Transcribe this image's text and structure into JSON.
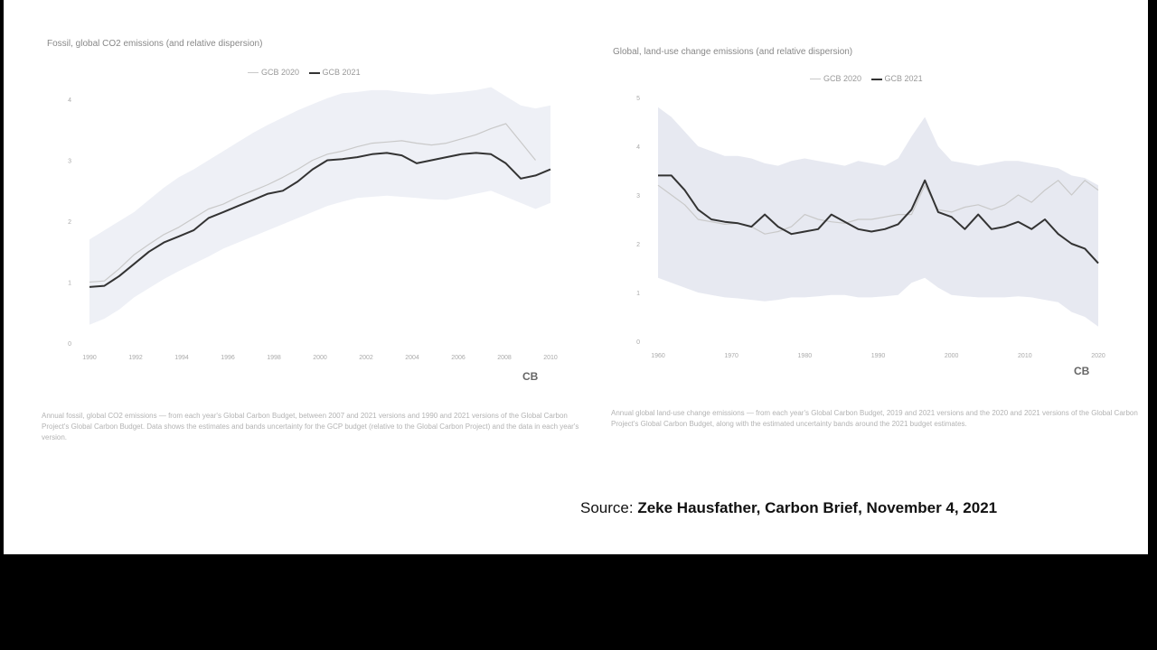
{
  "slide": {
    "source_prefix": "Source:",
    "source_author": "Zeke Hausfather,",
    "source_pub": "Carbon Brief,",
    "source_date": "November 4, 2021"
  },
  "chart_data": [
    {
      "type": "line",
      "title": "Fossil, global CO2 emissions (and relative dispersion)",
      "legend": [
        "GCB 2020",
        "GCB 2021"
      ],
      "legend_position": "top-center",
      "x": [
        1990,
        1991,
        1992,
        1993,
        1994,
        1995,
        1996,
        1997,
        1998,
        1999,
        2000,
        2001,
        2002,
        2003,
        2004,
        2005,
        2006,
        2007,
        2008,
        2009,
        2010,
        2011,
        2012,
        2013,
        2014,
        2015,
        2016,
        2017,
        2018,
        2019,
        2020,
        2021
      ],
      "xticks": [
        "1990",
        "1992",
        "1994",
        "1996",
        "1998",
        "2000",
        "2002",
        "2004",
        "2006",
        "2008",
        "2010"
      ],
      "yticks": [
        "0",
        "1",
        "2",
        "3",
        "4"
      ],
      "ylim": [
        0,
        4
      ],
      "ylabel": "",
      "series": [
        {
          "name": "GCB 2020",
          "color": "#c9c9c9",
          "values": [
            1.0,
            1.02,
            1.22,
            1.45,
            1.62,
            1.78,
            1.9,
            2.05,
            2.2,
            2.28,
            2.4,
            2.5,
            2.6,
            2.72,
            2.85,
            3.0,
            3.1,
            3.15,
            3.22,
            3.28,
            3.3,
            3.32,
            3.28,
            3.25,
            3.28,
            3.35,
            3.42,
            3.52,
            3.6,
            3.3,
            3.0,
            null
          ]
        },
        {
          "name": "GCB 2021",
          "color": "#333333",
          "values": [
            0.92,
            0.94,
            1.1,
            1.3,
            1.5,
            1.65,
            1.75,
            1.85,
            2.05,
            2.15,
            2.25,
            2.35,
            2.45,
            2.5,
            2.65,
            2.85,
            3.0,
            3.02,
            3.05,
            3.1,
            3.12,
            3.08,
            2.95,
            3.0,
            3.05,
            3.1,
            3.12,
            3.1,
            2.95,
            2.7,
            2.75,
            2.85
          ]
        }
      ],
      "band": {
        "lower": [
          0.3,
          0.4,
          0.55,
          0.75,
          0.9,
          1.05,
          1.18,
          1.3,
          1.42,
          1.55,
          1.65,
          1.75,
          1.85,
          1.95,
          2.05,
          2.15,
          2.25,
          2.32,
          2.38,
          2.4,
          2.42,
          2.4,
          2.38,
          2.36,
          2.35,
          2.4,
          2.45,
          2.5,
          2.4,
          2.3,
          2.2,
          2.3
        ],
        "upper": [
          1.7,
          1.85,
          2.0,
          2.15,
          2.35,
          2.55,
          2.72,
          2.85,
          3.0,
          3.15,
          3.3,
          3.45,
          3.58,
          3.7,
          3.82,
          3.92,
          4.02,
          4.1,
          4.12,
          4.15,
          4.15,
          4.12,
          4.1,
          4.08,
          4.1,
          4.12,
          4.15,
          4.2,
          4.05,
          3.9,
          3.85,
          3.9
        ],
        "color": "#eef0f6"
      },
      "caption": "Annual fossil, global CO2 emissions — from each year's Global Carbon Budget, between 2007 and 2021 versions and 1990 and 2021 versions of the Global Carbon Project's Global Carbon Budget. Data shows the estimates and bands uncertainty for the GCP budget (relative to the Global Carbon Project) and the data in each year's version.",
      "caption_highlight": "",
      "logo": "CB"
    },
    {
      "type": "line",
      "title": "Global, land-use change emissions (and relative dispersion)",
      "legend": [
        "GCB 2020",
        "GCB 2021"
      ],
      "legend_position": "top-center",
      "x": [
        1960,
        1962,
        1964,
        1966,
        1968,
        1970,
        1972,
        1974,
        1976,
        1978,
        1980,
        1982,
        1984,
        1986,
        1988,
        1990,
        1992,
        1994,
        1996,
        1997,
        1998,
        1999,
        2000,
        2002,
        2004,
        2006,
        2008,
        2010,
        2012,
        2014,
        2016,
        2018,
        2019,
        2020
      ],
      "xticks": [
        "1960",
        "1970",
        "1980",
        "1990",
        "2000",
        "2010",
        "2020"
      ],
      "yticks": [
        "0",
        "1",
        "2",
        "3",
        "4",
        "5"
      ],
      "ylim": [
        0,
        5
      ],
      "ylabel": "",
      "series": [
        {
          "name": "GCB 2020",
          "color": "#c9c9c9",
          "values": [
            3.2,
            3.0,
            2.8,
            2.5,
            2.45,
            2.4,
            2.42,
            2.35,
            2.2,
            2.25,
            2.35,
            2.6,
            2.5,
            2.45,
            2.42,
            2.5,
            2.5,
            2.55,
            2.6,
            2.6,
            3.2,
            2.7,
            2.65,
            2.75,
            2.8,
            2.7,
            2.8,
            3.0,
            2.85,
            3.1,
            3.3,
            3.0,
            3.3,
            3.1
          ]
        },
        {
          "name": "GCB 2021",
          "color": "#333333",
          "values": [
            3.4,
            3.4,
            3.1,
            2.7,
            2.5,
            2.45,
            2.42,
            2.35,
            2.6,
            2.35,
            2.2,
            2.25,
            2.3,
            2.6,
            2.45,
            2.3,
            2.25,
            2.3,
            2.4,
            2.7,
            3.3,
            2.65,
            2.55,
            2.3,
            2.6,
            2.3,
            2.35,
            2.45,
            2.3,
            2.5,
            2.2,
            2.0,
            1.9,
            1.6
          ]
        }
      ],
      "band": {
        "lower": [
          1.3,
          1.2,
          1.1,
          1.0,
          0.95,
          0.9,
          0.88,
          0.85,
          0.82,
          0.85,
          0.9,
          0.9,
          0.92,
          0.95,
          0.95,
          0.9,
          0.9,
          0.92,
          0.95,
          1.2,
          1.3,
          1.1,
          0.95,
          0.92,
          0.9,
          0.9,
          0.9,
          0.92,
          0.9,
          0.85,
          0.8,
          0.6,
          0.5,
          0.3
        ],
        "upper": [
          4.8,
          4.6,
          4.3,
          4.0,
          3.9,
          3.8,
          3.8,
          3.75,
          3.65,
          3.6,
          3.7,
          3.75,
          3.7,
          3.65,
          3.6,
          3.7,
          3.65,
          3.6,
          3.75,
          4.2,
          4.6,
          4.0,
          3.7,
          3.65,
          3.6,
          3.65,
          3.7,
          3.7,
          3.65,
          3.6,
          3.55,
          3.4,
          3.35,
          3.2
        ],
        "color": "#e7e9f1"
      },
      "caption": "Annual global land-use change emissions — from each year's Global Carbon Budget, 2019 and 2021 versions and the 2020 and 2021 versions of the Global Carbon Project's Global Carbon Budget, along with the estimated uncertainty bands around the 2021 budget estimates.",
      "caption_highlight": "",
      "logo": "CB"
    }
  ]
}
